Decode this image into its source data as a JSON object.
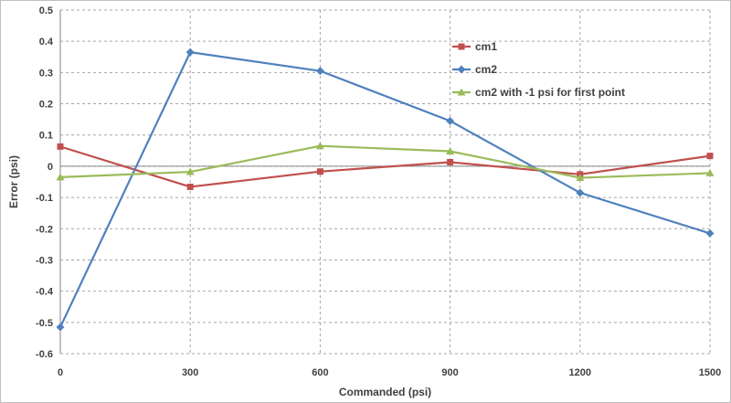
{
  "chart_data": {
    "type": "line",
    "title": "",
    "xlabel": "Commanded (psi)",
    "ylabel": "Error (psi)",
    "categories": [
      "0",
      "300",
      "600",
      "900",
      "1200",
      "1500"
    ],
    "ylim": [
      -0.6,
      0.5
    ],
    "ytick_values": [
      0.5,
      0.4,
      0.3,
      0.2,
      0.1,
      0,
      -0.1,
      -0.2,
      -0.3,
      -0.4,
      -0.5,
      -0.6
    ],
    "ytick_labels": [
      "0.5",
      "0.4",
      "0.3",
      "0.2",
      "0.1",
      "0",
      "-0.1",
      "-0.2",
      "-0.3",
      "-0.4",
      "-0.5",
      "-0.6"
    ],
    "xtick_labels": [
      "0",
      "300",
      "600",
      "900",
      "1200",
      "1500"
    ],
    "grid": true,
    "legend_position": "top-right",
    "series": [
      {
        "name": "cm1",
        "color": "#c0504d",
        "marker": "square",
        "values": [
          0.063,
          -0.066,
          -0.017,
          0.013,
          -0.026,
          0.033
        ]
      },
      {
        "name": "cm2",
        "color": "#4f81bd",
        "marker": "diamond",
        "values": [
          -0.515,
          0.365,
          0.305,
          0.145,
          -0.085,
          -0.215
        ]
      },
      {
        "name": "cm2 with -1 psi for first point",
        "color": "#9bbb59",
        "marker": "triangle",
        "values": [
          -0.035,
          -0.018,
          0.065,
          0.048,
          -0.037,
          -0.022
        ]
      }
    ]
  }
}
